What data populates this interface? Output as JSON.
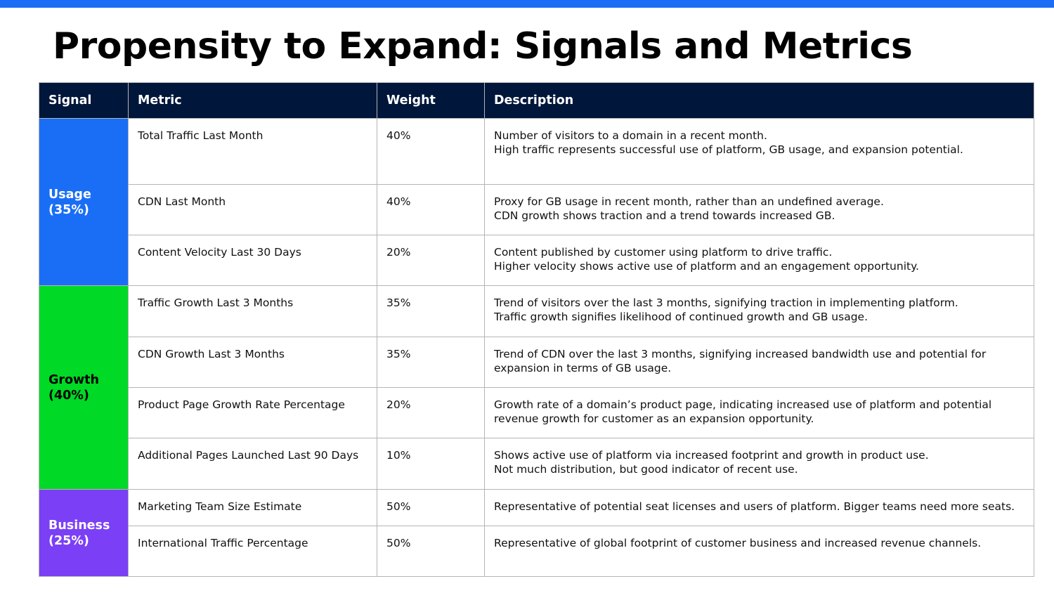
{
  "header": {
    "title": "Propensity to Expand: Signals and Metrics"
  },
  "table": {
    "columns": [
      "Signal",
      "Metric",
      "Weight",
      "Description"
    ],
    "groups": [
      {
        "signal": [
          "Usage",
          "(35%)"
        ],
        "rows": [
          {
            "metric": "Total Traffic Last Month",
            "weight": "40%",
            "description": [
              "Number of visitors to a domain in a recent month.",
              "High traffic represents successful use of platform, GB usage, and expansion potential."
            ]
          },
          {
            "metric": "CDN Last Month",
            "weight": "40%",
            "description": [
              "Proxy for GB usage in recent month, rather than an undefined average.",
              "CDN growth shows traction and a trend towards increased GB."
            ]
          },
          {
            "metric": "Content Velocity Last 30 Days",
            "weight": "20%",
            "description": [
              "Content published by customer using platform to drive traffic.",
              "Higher velocity shows active use of platform and an engagement opportunity."
            ]
          }
        ]
      },
      {
        "signal": [
          "Growth",
          "(40%)"
        ],
        "rows": [
          {
            "metric": "Traffic Growth Last 3 Months",
            "weight": "35%",
            "description": [
              "Trend of visitors over the last 3 months, signifying traction in implementing platform.",
              "Traffic growth signifies likelihood of continued growth and GB usage."
            ]
          },
          {
            "metric": "CDN Growth Last 3 Months",
            "weight": "35%",
            "description": [
              "Trend of CDN over the last 3 months, signifying increased bandwidth use and potential for expansion in terms of GB usage."
            ]
          },
          {
            "metric": "Product Page Growth Rate Percentage",
            "weight": "20%",
            "description": [
              "Growth rate of a domain’s product page, indicating increased use of platform and potential revenue growth for customer as an expansion opportunity."
            ]
          },
          {
            "metric": "Additional Pages Launched Last 90 Days",
            "weight": "10%",
            "description": [
              "Shows active use of platform via increased footprint and growth in product use.",
              "Not much distribution, but good indicator of recent use."
            ]
          }
        ]
      },
      {
        "signal": [
          "Business",
          "(25%)"
        ],
        "rows": [
          {
            "metric": "Marketing Team Size Estimate",
            "weight": "50%",
            "description": [
              "Representative of potential seat licenses and users of platform. Bigger teams need more seats."
            ]
          },
          {
            "metric": "International Traffic Percentage",
            "weight": "50%",
            "description": [
              "Representative of global footprint of customer business and increased revenue channels."
            ]
          }
        ]
      }
    ]
  }
}
